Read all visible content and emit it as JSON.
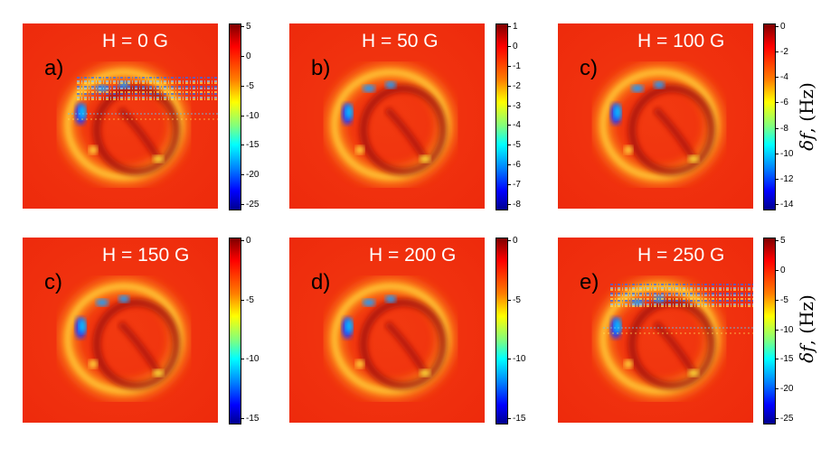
{
  "figure": {
    "ylabel_symbol": "δf",
    "ylabel_unit": ", (Hz)"
  },
  "panels": [
    {
      "label": "a)",
      "title": "H = 0 G",
      "ticks": [
        "5",
        "0",
        "-5",
        "-10",
        "-15",
        "-20",
        "-25"
      ]
    },
    {
      "label": "b)",
      "title": "H = 50 G",
      "ticks": [
        "1",
        "0",
        "-1",
        "-2",
        "-3",
        "-4",
        "-5",
        "-6",
        "-7",
        "-8"
      ]
    },
    {
      "label": "c)",
      "title": "H = 100 G",
      "ticks": [
        "0",
        "-2",
        "-4",
        "-6",
        "-8",
        "-10",
        "-12",
        "-14"
      ]
    },
    {
      "label": "c)",
      "title": "H = 150 G",
      "ticks": [
        "0",
        "-5",
        "-10",
        "-15"
      ]
    },
    {
      "label": "d)",
      "title": "H = 200 G",
      "ticks": [
        "0",
        "-5",
        "-10",
        "-15"
      ]
    },
    {
      "label": "e)",
      "title": "H = 250 G",
      "ticks": [
        "5",
        "0",
        "-5",
        "-10",
        "-15",
        "-20",
        "-25"
      ]
    }
  ]
}
